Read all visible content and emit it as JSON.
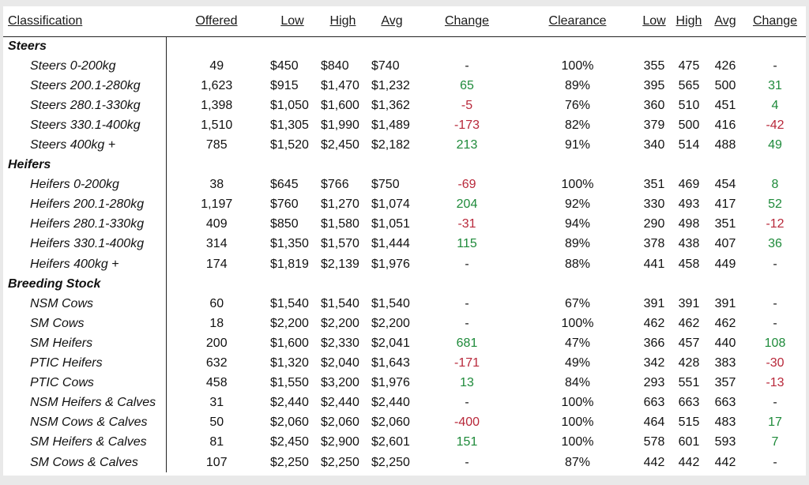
{
  "headers": {
    "classification": "Classification",
    "offered": "Offered",
    "low": "Low",
    "high": "High",
    "avg": "Avg",
    "change": "Change",
    "clearance": "Clearance",
    "low2": "Low",
    "high2": "High",
    "avg2": "Avg",
    "change2": "Change"
  },
  "colors": {
    "positive": "#1e8a3a",
    "negative": "#b8283a"
  },
  "groups": [
    {
      "title": "Steers",
      "rows": [
        {
          "name": "Steers 0-200kg",
          "offered": "49",
          "low": "$450",
          "high": "$840",
          "avg": "$740",
          "change": "-",
          "clearance": "100%",
          "low2": "355",
          "high2": "475",
          "avg2": "426",
          "change2": "-"
        },
        {
          "name": "Steers 200.1-280kg",
          "offered": "1,623",
          "low": "$915",
          "high": "$1,470",
          "avg": "$1,232",
          "change": "65",
          "clearance": "89%",
          "low2": "395",
          "high2": "565",
          "avg2": "500",
          "change2": "31"
        },
        {
          "name": "Steers 280.1-330kg",
          "offered": "1,398",
          "low": "$1,050",
          "high": "$1,600",
          "avg": "$1,362",
          "change": "-5",
          "clearance": "76%",
          "low2": "360",
          "high2": "510",
          "avg2": "451",
          "change2": "4"
        },
        {
          "name": "Steers 330.1-400kg",
          "offered": "1,510",
          "low": "$1,305",
          "high": "$1,990",
          "avg": "$1,489",
          "change": "-173",
          "clearance": "82%",
          "low2": "379",
          "high2": "500",
          "avg2": "416",
          "change2": "-42"
        },
        {
          "name": "Steers 400kg +",
          "offered": "785",
          "low": "$1,520",
          "high": "$2,450",
          "avg": "$2,182",
          "change": "213",
          "clearance": "91%",
          "low2": "340",
          "high2": "514",
          "avg2": "488",
          "change2": "49"
        }
      ]
    },
    {
      "title": "Heifers",
      "rows": [
        {
          "name": "Heifers 0-200kg",
          "offered": "38",
          "low": "$645",
          "high": "$766",
          "avg": "$750",
          "change": "-69",
          "clearance": "100%",
          "low2": "351",
          "high2": "469",
          "avg2": "454",
          "change2": "8"
        },
        {
          "name": "Heifers 200.1-280kg",
          "offered": "1,197",
          "low": "$760",
          "high": "$1,270",
          "avg": "$1,074",
          "change": "204",
          "clearance": "92%",
          "low2": "330",
          "high2": "493",
          "avg2": "417",
          "change2": "52"
        },
        {
          "name": "Heifers 280.1-330kg",
          "offered": "409",
          "low": "$850",
          "high": "$1,580",
          "avg": "$1,051",
          "change": "-31",
          "clearance": "94%",
          "low2": "290",
          "high2": "498",
          "avg2": "351",
          "change2": "-12"
        },
        {
          "name": "Heifers 330.1-400kg",
          "offered": "314",
          "low": "$1,350",
          "high": "$1,570",
          "avg": "$1,444",
          "change": "115",
          "clearance": "89%",
          "low2": "378",
          "high2": "438",
          "avg2": "407",
          "change2": "36"
        },
        {
          "name": "Heifers 400kg +",
          "offered": "174",
          "low": "$1,819",
          "high": "$2,139",
          "avg": "$1,976",
          "change": "-",
          "clearance": "88%",
          "low2": "441",
          "high2": "458",
          "avg2": "449",
          "change2": "-"
        }
      ]
    },
    {
      "title": "Breeding Stock",
      "rows": [
        {
          "name": "NSM Cows",
          "offered": "60",
          "low": "$1,540",
          "high": "$1,540",
          "avg": "$1,540",
          "change": "-",
          "clearance": "67%",
          "low2": "391",
          "high2": "391",
          "avg2": "391",
          "change2": "-"
        },
        {
          "name": "SM Cows",
          "offered": "18",
          "low": "$2,200",
          "high": "$2,200",
          "avg": "$2,200",
          "change": "-",
          "clearance": "100%",
          "low2": "462",
          "high2": "462",
          "avg2": "462",
          "change2": "-"
        },
        {
          "name": "SM Heifers",
          "offered": "200",
          "low": "$1,600",
          "high": "$2,330",
          "avg": "$2,041",
          "change": "681",
          "clearance": "47%",
          "low2": "366",
          "high2": "457",
          "avg2": "440",
          "change2": "108"
        },
        {
          "name": "PTIC Heifers",
          "offered": "632",
          "low": "$1,320",
          "high": "$2,040",
          "avg": "$1,643",
          "change": "-171",
          "clearance": "49%",
          "low2": "342",
          "high2": "428",
          "avg2": "383",
          "change2": "-30"
        },
        {
          "name": "PTIC Cows",
          "offered": "458",
          "low": "$1,550",
          "high": "$3,200",
          "avg": "$1,976",
          "change": "13",
          "clearance": "84%",
          "low2": "293",
          "high2": "551",
          "avg2": "357",
          "change2": "-13"
        },
        {
          "name": "NSM Heifers & Calves",
          "offered": "31",
          "low": "$2,440",
          "high": "$2,440",
          "avg": "$2,440",
          "change": "-",
          "clearance": "100%",
          "low2": "663",
          "high2": "663",
          "avg2": "663",
          "change2": "-"
        },
        {
          "name": "NSM Cows & Calves",
          "offered": "50",
          "low": "$2,060",
          "high": "$2,060",
          "avg": "$2,060",
          "change": "-400",
          "clearance": "100%",
          "low2": "464",
          "high2": "515",
          "avg2": "483",
          "change2": "17"
        },
        {
          "name": "SM Heifers & Calves",
          "offered": "81",
          "low": "$2,450",
          "high": "$2,900",
          "avg": "$2,601",
          "change": "151",
          "clearance": "100%",
          "low2": "578",
          "high2": "601",
          "avg2": "593",
          "change2": "7"
        },
        {
          "name": "SM Cows & Calves",
          "offered": "107",
          "low": "$2,250",
          "high": "$2,250",
          "avg": "$2,250",
          "change": "-",
          "clearance": "87%",
          "low2": "442",
          "high2": "442",
          "avg2": "442",
          "change2": "-"
        }
      ]
    }
  ]
}
